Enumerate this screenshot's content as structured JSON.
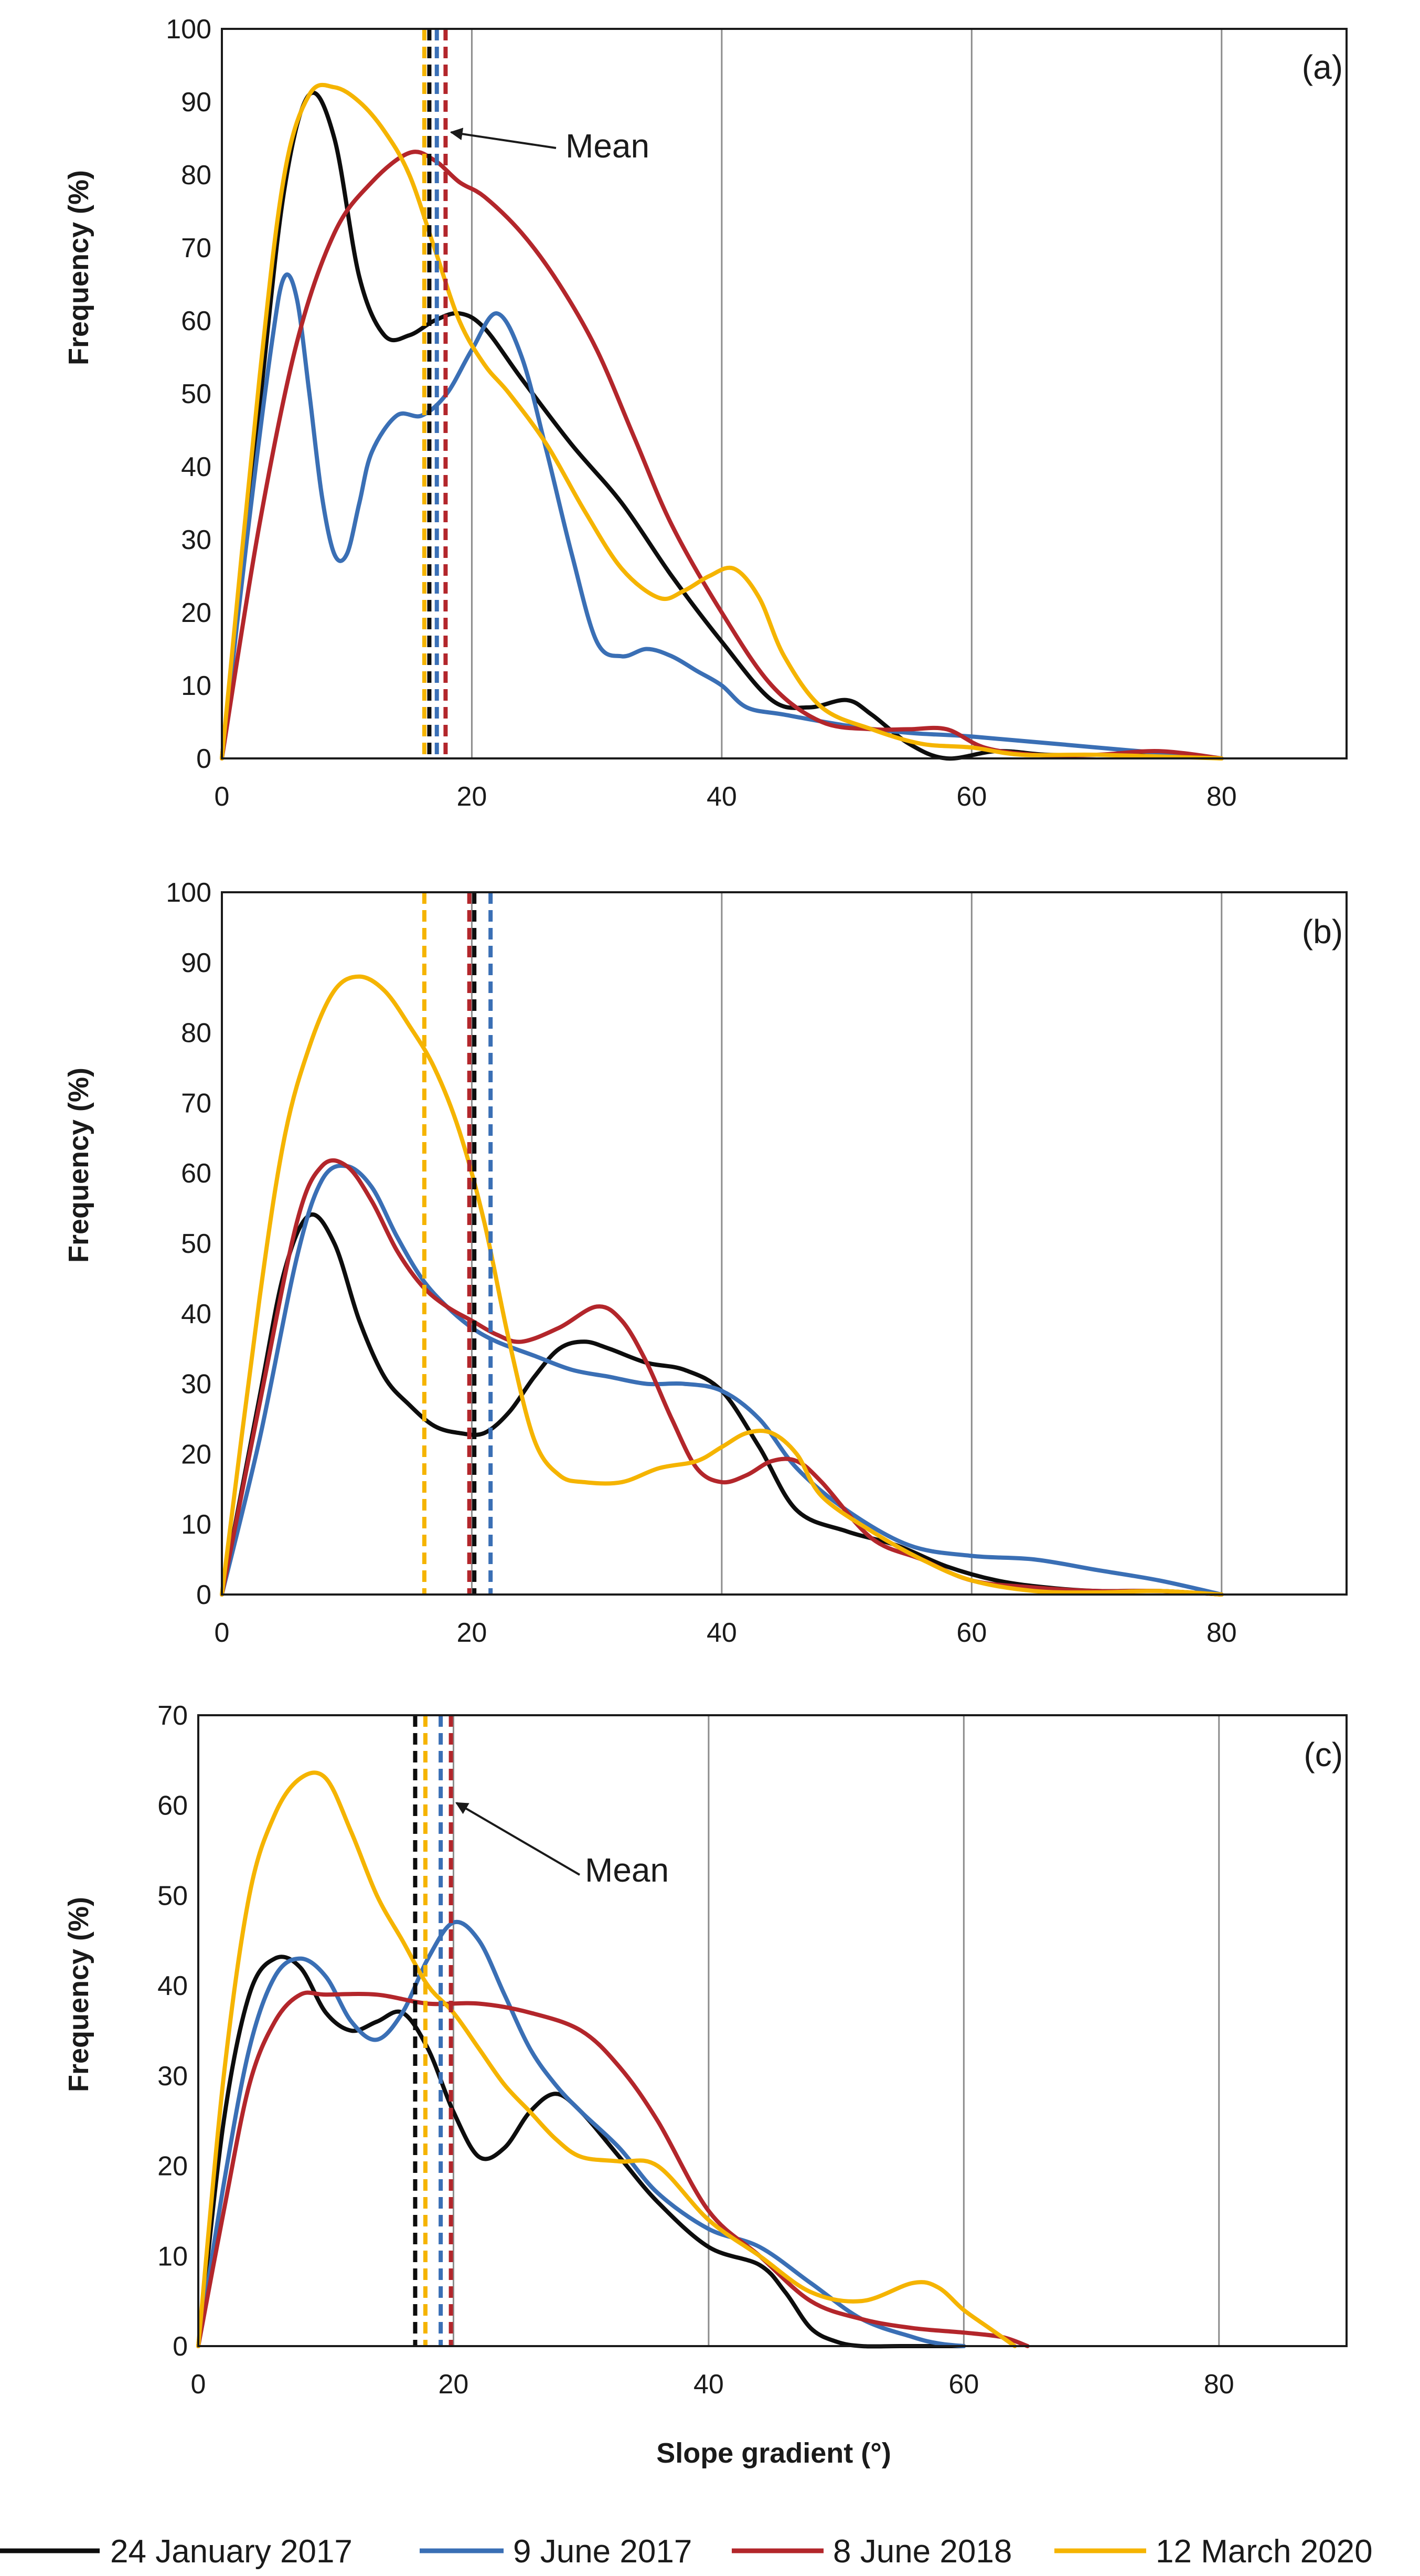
{
  "colors": {
    "jan2017": "#0d0d0d",
    "jun2017": "#3a6fb5",
    "jun2018": "#b3262b",
    "mar2020": "#f5b400",
    "grid": "#8c8c8c",
    "frame": "#1a1a1a"
  },
  "x_axis_title": "Slope gradient (°)",
  "legend": [
    {
      "key": "jan2017",
      "label": "24 January 2017"
    },
    {
      "key": "jun2017",
      "label": "9 June 2017"
    },
    {
      "key": "jun2018",
      "label": "8 June 2018"
    },
    {
      "key": "mar2020",
      "label": "12 March 2020"
    }
  ],
  "chart_data": [
    {
      "type": "line",
      "panel": "(a)",
      "title": "",
      "xlabel": "",
      "ylabel": "Frequency (%)",
      "xlim": [
        0,
        90
      ],
      "ylim": [
        0,
        100
      ],
      "xticks": [
        0,
        20,
        40,
        60,
        80
      ],
      "yticks": [
        0,
        10,
        20,
        30,
        40,
        50,
        60,
        70,
        80,
        90,
        100
      ],
      "grid": true,
      "annotation": {
        "text": "Mean",
        "arrow_to": [
          17.5,
          86
        ],
        "text_at": [
          27,
          84
        ]
      },
      "series": [
        {
          "key": "jan2017",
          "name": "24 January 2017",
          "mean": 16.6,
          "x": [
            0,
            3,
            5,
            7,
            9,
            11,
            13,
            15,
            17,
            19,
            21,
            24,
            28,
            32,
            36,
            40,
            44,
            47,
            50,
            52,
            55,
            58,
            62,
            66,
            70,
            74,
            80
          ],
          "y": [
            0,
            48,
            78,
            91,
            85,
            66,
            58,
            58,
            60,
            61,
            59,
            52,
            43,
            35,
            25,
            16,
            8,
            7,
            8,
            6,
            2,
            0,
            1,
            0.5,
            0.5,
            0.5,
            0
          ]
        },
        {
          "key": "jun2017",
          "name": "9 June 2017",
          "mean": 17.2,
          "x": [
            0,
            2,
            4,
            5,
            6,
            7,
            8,
            9,
            10,
            11,
            12,
            14,
            16,
            18,
            20,
            22,
            24,
            26,
            28,
            30,
            32,
            34,
            36,
            38,
            40,
            42,
            45,
            50,
            55,
            60,
            70,
            80
          ],
          "y": [
            0,
            30,
            57,
            66,
            63,
            50,
            36,
            28,
            28,
            35,
            42,
            47,
            47,
            50,
            56,
            61,
            55,
            42,
            28,
            16,
            14,
            15,
            14,
            12,
            10,
            7,
            6,
            4.5,
            3.5,
            3,
            1.5,
            0
          ]
        },
        {
          "key": "jun2018",
          "name": "8 June 2018",
          "mean": 17.9,
          "x": [
            0,
            3,
            6,
            9,
            12,
            15,
            17,
            19,
            21,
            24,
            27,
            30,
            33,
            36,
            40,
            44,
            48,
            52,
            55,
            58,
            61,
            65,
            70,
            75,
            80
          ],
          "y": [
            0,
            32,
            57,
            72,
            79,
            83,
            82,
            79,
            77,
            72,
            65,
            56,
            44,
            32,
            20,
            10,
            5,
            4,
            4,
            4,
            1.5,
            0.5,
            0.5,
            1,
            0
          ]
        },
        {
          "key": "mar2020",
          "name": "12 March 2020",
          "mean": 16.2,
          "x": [
            0,
            3,
            5,
            7,
            9,
            11,
            13,
            15,
            17,
            19,
            21,
            23,
            26,
            29,
            32,
            35,
            37,
            39,
            41,
            43,
            45,
            48,
            52,
            56,
            60,
            64,
            70,
            80
          ],
          "y": [
            0,
            52,
            80,
            91,
            92,
            90,
            86,
            80,
            70,
            60,
            54,
            50,
            43,
            34,
            26,
            22,
            23,
            25,
            26,
            22,
            14,
            7,
            4,
            2,
            1.5,
            0.5,
            0.5,
            0
          ]
        }
      ]
    },
    {
      "type": "line",
      "panel": "(b)",
      "title": "",
      "xlabel": "",
      "ylabel": "Frequency (%)",
      "xlim": [
        0,
        90
      ],
      "ylim": [
        0,
        100
      ],
      "xticks": [
        0,
        20,
        40,
        60,
        80
      ],
      "yticks": [
        0,
        10,
        20,
        30,
        40,
        50,
        60,
        70,
        80,
        90,
        100
      ],
      "grid": true,
      "series": [
        {
          "key": "jan2017",
          "name": "24 January 2017",
          "mean": 20.2,
          "x": [
            0,
            3,
            5,
            7,
            9,
            11,
            13,
            15,
            17,
            19,
            21,
            23,
            25,
            27,
            29,
            31,
            34,
            37,
            40,
            43,
            46,
            50,
            54,
            58,
            62,
            66,
            70,
            75,
            80
          ],
          "y": [
            0,
            28,
            46,
            54,
            50,
            39,
            31,
            27,
            24,
            23,
            23,
            26,
            31,
            35,
            36,
            35,
            33,
            32,
            29,
            21,
            12,
            9,
            7,
            4,
            2,
            1,
            0.5,
            0.5,
            0
          ]
        },
        {
          "key": "jun2017",
          "name": "9 June 2017",
          "mean": 21.5,
          "x": [
            0,
            3,
            6,
            8,
            10,
            12,
            14,
            16,
            18,
            20,
            22,
            25,
            28,
            31,
            34,
            37,
            40,
            43,
            46,
            50,
            55,
            60,
            65,
            70,
            75,
            80
          ],
          "y": [
            0,
            22,
            48,
            59,
            61,
            58,
            51,
            45,
            41,
            38,
            36,
            34,
            32,
            31,
            30,
            30,
            29,
            25,
            18,
            12,
            7,
            5.5,
            5,
            3.5,
            2,
            0
          ]
        },
        {
          "key": "jun2018",
          "name": "8 June 2018",
          "mean": 19.8,
          "x": [
            0,
            3,
            6,
            8,
            10,
            12,
            14,
            16,
            18,
            20,
            22,
            24,
            27,
            30,
            32,
            34,
            36,
            38,
            40,
            42,
            44,
            46,
            48,
            52,
            56,
            60,
            65,
            70,
            75,
            80
          ],
          "y": [
            0,
            27,
            53,
            61,
            61,
            56,
            49,
            44,
            41,
            39,
            37,
            36,
            38,
            41,
            39,
            33,
            25,
            18,
            16,
            17,
            19,
            19,
            16,
            8,
            5,
            2,
            1,
            0.5,
            0.5,
            0
          ]
        },
        {
          "key": "mar2020",
          "name": "12 March 2020",
          "mean": 16.2,
          "x": [
            0,
            3,
            5,
            7,
            9,
            11,
            13,
            15,
            17,
            19,
            21,
            23,
            25,
            27,
            29,
            32,
            35,
            38,
            40,
            42,
            44,
            46,
            48,
            52,
            56,
            60,
            65,
            70,
            75,
            80
          ],
          "y": [
            0,
            42,
            65,
            78,
            86,
            88,
            86,
            81,
            75,
            66,
            53,
            36,
            22,
            17,
            16,
            16,
            18,
            19,
            21,
            23,
            23,
            20,
            14,
            9,
            5,
            2,
            0.5,
            0.3,
            0.5,
            0
          ]
        }
      ]
    },
    {
      "type": "line",
      "panel": "(c)",
      "title": "",
      "xlabel": "Slope gradient (°)",
      "ylabel": "Frequency (%)",
      "xlim": [
        0,
        90
      ],
      "ylim": [
        0,
        70
      ],
      "xticks": [
        0,
        20,
        40,
        60,
        80
      ],
      "yticks": [
        0,
        10,
        20,
        30,
        40,
        50,
        60,
        70
      ],
      "grid": true,
      "annotation": {
        "text": "Mean",
        "arrow_to": [
          20.5,
          59.5
        ],
        "text_at": [
          30,
          51.5
        ]
      },
      "series": [
        {
          "key": "jan2017",
          "name": "24 January 2017",
          "mean": 17.0,
          "x": [
            0,
            2,
            4,
            6,
            8,
            10,
            12,
            14,
            16,
            18,
            20,
            22,
            24,
            26,
            28,
            30,
            33,
            36,
            40,
            44,
            46,
            48,
            50,
            52,
            55,
            60
          ],
          "y": [
            0,
            25,
            39,
            43,
            42,
            37,
            35,
            36,
            37,
            33,
            26,
            21,
            22,
            26,
            28,
            26,
            21,
            16,
            11,
            9,
            6,
            2,
            0.5,
            0,
            0,
            0
          ]
        },
        {
          "key": "jun2017",
          "name": "9 June 2017",
          "mean": 19.0,
          "x": [
            0,
            2,
            4,
            6,
            8,
            10,
            12,
            14,
            16,
            18,
            20,
            22,
            24,
            26,
            28,
            30,
            33,
            36,
            40,
            44,
            48,
            52,
            56,
            58,
            60
          ],
          "y": [
            0,
            18,
            33,
            41,
            43,
            41,
            36,
            34,
            37,
            43,
            47,
            45,
            39,
            33,
            29,
            26,
            22,
            17,
            13,
            11,
            7,
            3,
            1,
            0.3,
            0
          ]
        },
        {
          "key": "jun2018",
          "name": "8 June 2018",
          "mean": 19.8,
          "x": [
            0,
            2,
            4,
            6,
            8,
            10,
            14,
            18,
            22,
            26,
            30,
            33,
            36,
            40,
            44,
            48,
            52,
            56,
            60,
            63,
            65
          ],
          "y": [
            0,
            15,
            29,
            36,
            39,
            39,
            39,
            38,
            38,
            37,
            35,
            31,
            25,
            15,
            10,
            5,
            3,
            2,
            1.5,
            1,
            0
          ]
        },
        {
          "key": "mar2020",
          "name": "12 March 2020",
          "mean": 17.8,
          "x": [
            0,
            2,
            4,
            6,
            8,
            10,
            12,
            14,
            16,
            18,
            20,
            22,
            24,
            26,
            28,
            30,
            33,
            36,
            40,
            44,
            48,
            52,
            56,
            58,
            60,
            62,
            64
          ],
          "y": [
            0,
            30,
            50,
            59,
            63,
            63,
            57,
            50,
            45,
            40,
            37,
            33,
            29,
            26,
            23,
            21,
            20.5,
            20,
            14,
            10,
            6,
            5,
            7,
            6.5,
            4,
            2,
            0
          ]
        }
      ]
    }
  ]
}
